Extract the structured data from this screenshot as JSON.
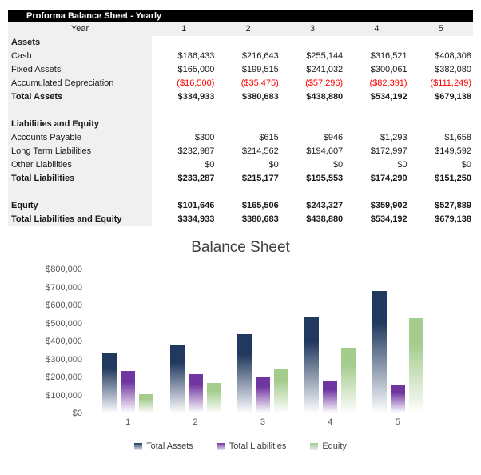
{
  "sheet": {
    "title": "Proforma Balance Sheet - Yearly",
    "year_label": "Year",
    "year_columns": [
      "1",
      "2",
      "3",
      "4",
      "5"
    ],
    "rows": [
      {
        "label": "Assets",
        "type": "section",
        "values": [
          "",
          "",
          "",
          "",
          ""
        ]
      },
      {
        "label": "Cash",
        "type": "data",
        "values": [
          "$186,433",
          "$216,643",
          "$255,144",
          "$316,521",
          "$408,308"
        ]
      },
      {
        "label": "Fixed Assets",
        "type": "data",
        "values": [
          "$165,000",
          "$199,515",
          "$241,032",
          "$300,061",
          "$382,080"
        ]
      },
      {
        "label": "Accumulated Depreciation",
        "type": "negative",
        "values": [
          "($16,500)",
          "($35,475)",
          "($57,296)",
          "($82,391)",
          "($111,249)"
        ]
      },
      {
        "label": "Total Assets",
        "type": "total",
        "values": [
          "$334,933",
          "$380,683",
          "$438,880",
          "$534,192",
          "$679,138"
        ]
      },
      {
        "label": "",
        "type": "spacer",
        "values": [
          "",
          "",
          "",
          "",
          ""
        ]
      },
      {
        "label": "Liabilities and Equity",
        "type": "section",
        "values": [
          "",
          "",
          "",
          "",
          ""
        ]
      },
      {
        "label": "Accounts Payable",
        "type": "data",
        "values": [
          "$300",
          "$615",
          "$946",
          "$1,293",
          "$1,658"
        ]
      },
      {
        "label": "Long Term Liabilities",
        "type": "data",
        "values": [
          "$232,987",
          "$214,562",
          "$194,607",
          "$172,997",
          "$149,592"
        ]
      },
      {
        "label": "Other Liabilities",
        "type": "data",
        "values": [
          "$0",
          "$0",
          "$0",
          "$0",
          "$0"
        ]
      },
      {
        "label": "Total Liabilities",
        "type": "total",
        "values": [
          "$233,287",
          "$215,177",
          "$195,553",
          "$174,290",
          "$151,250"
        ]
      },
      {
        "label": "",
        "type": "spacer",
        "values": [
          "",
          "",
          "",
          "",
          ""
        ]
      },
      {
        "label": "Equity",
        "type": "total",
        "values": [
          "$101,646",
          "$165,506",
          "$243,327",
          "$359,902",
          "$527,889"
        ]
      },
      {
        "label": "Total Liabilities and Equity",
        "type": "total",
        "values": [
          "$334,933",
          "$380,683",
          "$438,880",
          "$534,192",
          "$679,138"
        ]
      }
    ]
  },
  "chart_data": {
    "type": "bar",
    "title": "Balance Sheet",
    "categories": [
      "1",
      "2",
      "3",
      "4",
      "5"
    ],
    "series": [
      {
        "name": "Total Assets",
        "color": "#21395f",
        "values": [
          334933,
          380683,
          438880,
          534192,
          679138
        ]
      },
      {
        "name": "Total Liabilities",
        "color": "#6f35a0",
        "values": [
          233287,
          215177,
          195553,
          174290,
          151250
        ]
      },
      {
        "name": "Equity",
        "color": "#a4cc8c",
        "values": [
          101646,
          165506,
          243327,
          359902,
          527889
        ]
      }
    ],
    "y_ticks": [
      "$800,000",
      "$700,000",
      "$600,000",
      "$500,000",
      "$400,000",
      "$300,000",
      "$200,000",
      "$100,000",
      "$0"
    ],
    "ylim": [
      0,
      800000
    ],
    "xlabel": "",
    "ylabel": "",
    "grid": false,
    "legend_position": "bottom",
    "bar_fill_style": "gradient-fade-to-white"
  },
  "colors": {
    "title_bar_bg": "#000000",
    "title_bar_text": "#ffffff",
    "label_column_bg": "#f0f0f0",
    "negative_text": "#ff0000",
    "chart_title_text": "#404040",
    "axis_text": "#595959",
    "axis_line": "#d9d9d9"
  }
}
